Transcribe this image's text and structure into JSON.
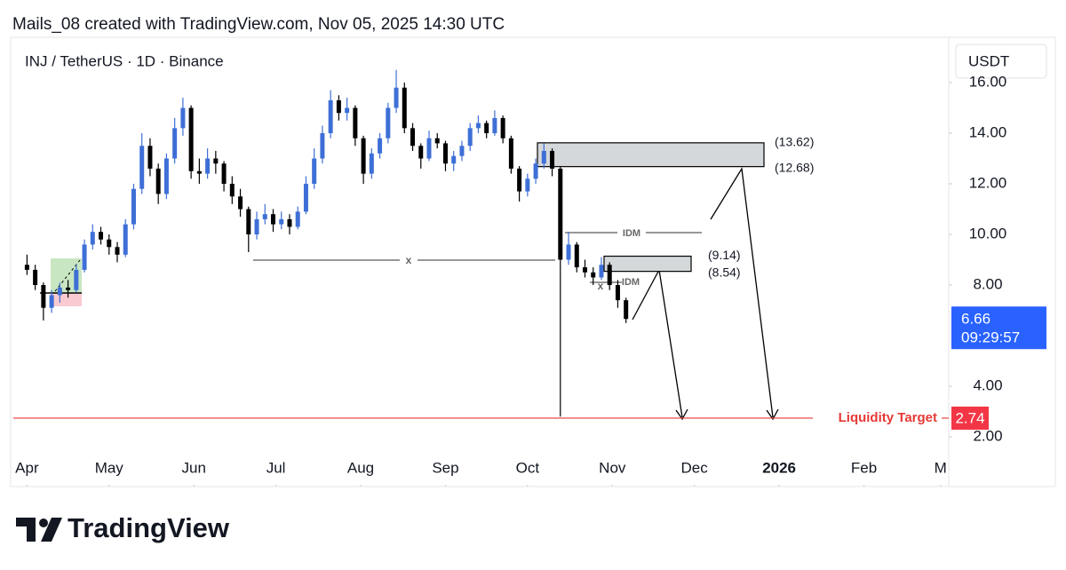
{
  "header": "Mails_08 created with TradingView.com, Nov 05, 2025 14:30 UTC",
  "brand": "TradingView",
  "chart_data": {
    "type": "candlestick",
    "symbol": "INJ / TetherUS · 1D · Binance",
    "currency": "USDT",
    "up_color": "#3d6fd6",
    "down_color": "#000000",
    "x": [
      91,
      94,
      97,
      100,
      103,
      106,
      109,
      112,
      115,
      118,
      121,
      124,
      127,
      130,
      133,
      136,
      139,
      142,
      145,
      148,
      151,
      154,
      157,
      160,
      163,
      166,
      169,
      172,
      175,
      178,
      181,
      184,
      187,
      190,
      193,
      196,
      199,
      202,
      205,
      208,
      211,
      214,
      217,
      220,
      223,
      226,
      229,
      232,
      235,
      238,
      241,
      244,
      247,
      250,
      253,
      256,
      259,
      262,
      265,
      268,
      271,
      274,
      277,
      280,
      283,
      286,
      289,
      292,
      295,
      298,
      301,
      304,
      307,
      310
    ],
    "candles": [
      [
        8.8,
        9.2,
        8.4,
        8.6
      ],
      [
        8.6,
        8.8,
        7.8,
        8.0
      ],
      [
        8.0,
        8.1,
        6.6,
        7.1
      ],
      [
        7.1,
        7.8,
        6.9,
        7.6
      ],
      [
        7.6,
        8.1,
        7.3,
        7.9
      ],
      [
        7.9,
        8.2,
        7.5,
        7.8
      ],
      [
        7.8,
        8.8,
        7.7,
        8.6
      ],
      [
        8.6,
        9.8,
        8.5,
        9.6
      ],
      [
        9.6,
        10.4,
        9.4,
        10.1
      ],
      [
        10.1,
        10.3,
        9.6,
        9.8
      ],
      [
        9.8,
        10.0,
        9.2,
        9.5
      ],
      [
        9.5,
        9.7,
        8.9,
        9.2
      ],
      [
        9.2,
        10.6,
        9.1,
        10.4
      ],
      [
        10.4,
        12.0,
        10.2,
        11.8
      ],
      [
        11.8,
        14.0,
        11.6,
        13.5
      ],
      [
        13.5,
        13.8,
        12.3,
        12.6
      ],
      [
        12.6,
        12.8,
        11.2,
        11.6
      ],
      [
        11.6,
        13.2,
        11.4,
        13.0
      ],
      [
        13.0,
        14.6,
        12.8,
        14.2
      ],
      [
        14.2,
        15.4,
        13.9,
        15.0
      ],
      [
        15.0,
        15.1,
        12.2,
        12.5
      ],
      [
        12.5,
        13.0,
        12.0,
        12.4
      ],
      [
        12.4,
        13.4,
        12.2,
        13.0
      ],
      [
        13.0,
        13.3,
        12.4,
        12.8
      ],
      [
        12.8,
        12.9,
        11.7,
        12.0
      ],
      [
        12.0,
        12.3,
        11.2,
        11.5
      ],
      [
        11.5,
        11.8,
        10.7,
        11.0
      ],
      [
        11.0,
        11.1,
        9.3,
        10.0
      ],
      [
        10.0,
        10.9,
        9.8,
        10.6
      ],
      [
        10.6,
        11.2,
        10.4,
        10.8
      ],
      [
        10.8,
        11.0,
        10.1,
        10.4
      ],
      [
        10.4,
        10.9,
        10.2,
        10.6
      ],
      [
        10.6,
        10.8,
        10.0,
        10.3
      ],
      [
        10.3,
        11.1,
        10.2,
        10.9
      ],
      [
        10.9,
        12.3,
        10.8,
        12.0
      ],
      [
        12.0,
        13.4,
        11.8,
        13.0
      ],
      [
        13.0,
        14.3,
        12.8,
        14.0
      ],
      [
        14.0,
        15.7,
        13.8,
        15.3
      ],
      [
        15.3,
        15.5,
        14.5,
        14.8
      ],
      [
        14.8,
        15.4,
        14.5,
        15.0
      ],
      [
        15.0,
        15.1,
        13.5,
        13.8
      ],
      [
        13.8,
        13.9,
        12.0,
        12.4
      ],
      [
        12.4,
        13.4,
        12.2,
        13.2
      ],
      [
        13.2,
        14.0,
        13.0,
        13.8
      ],
      [
        13.8,
        15.2,
        13.6,
        15.0
      ],
      [
        15.0,
        16.5,
        14.8,
        15.8
      ],
      [
        15.8,
        16.0,
        14.0,
        14.2
      ],
      [
        14.2,
        14.4,
        13.3,
        13.5
      ],
      [
        13.5,
        13.6,
        12.6,
        13.0
      ],
      [
        13.0,
        14.1,
        12.9,
        13.8
      ],
      [
        13.8,
        14.0,
        13.4,
        13.6
      ],
      [
        13.6,
        13.7,
        12.5,
        12.8
      ],
      [
        12.8,
        13.3,
        12.5,
        13.1
      ],
      [
        13.1,
        13.7,
        12.9,
        13.5
      ],
      [
        13.5,
        14.4,
        13.3,
        14.2
      ],
      [
        14.2,
        14.7,
        14.0,
        14.4
      ],
      [
        14.4,
        14.5,
        13.8,
        14.0
      ],
      [
        14.0,
        14.9,
        13.9,
        14.6
      ],
      [
        14.6,
        14.7,
        13.6,
        13.8
      ],
      [
        13.8,
        13.9,
        12.4,
        12.6
      ],
      [
        12.6,
        12.7,
        11.3,
        11.7
      ],
      [
        11.7,
        12.4,
        11.5,
        12.2
      ],
      [
        12.2,
        13.0,
        12.0,
        12.8
      ],
      [
        12.8,
        13.6,
        12.6,
        13.3
      ],
      [
        13.3,
        13.4,
        12.3,
        12.6
      ],
      [
        12.6,
        12.7,
        2.8,
        9.0
      ],
      [
        9.0,
        10.1,
        8.8,
        9.6
      ],
      [
        9.6,
        9.7,
        8.5,
        8.7
      ],
      [
        8.7,
        9.0,
        8.3,
        8.5
      ],
      [
        8.5,
        8.7,
        8.0,
        8.3
      ],
      [
        8.3,
        9.1,
        8.2,
        8.8
      ],
      [
        8.8,
        8.9,
        7.8,
        8.0
      ],
      [
        8.0,
        8.2,
        7.1,
        7.4
      ],
      [
        7.4,
        7.5,
        6.5,
        6.66
      ]
    ],
    "xlim": [
      86,
      428
    ],
    "xticks": [
      {
        "value": 91,
        "label": "Apr"
      },
      {
        "value": 121,
        "label": "May"
      },
      {
        "value": 152,
        "label": "Jun"
      },
      {
        "value": 182,
        "label": "Jul"
      },
      {
        "value": 213,
        "label": "Aug"
      },
      {
        "value": 244,
        "label": "Sep"
      },
      {
        "value": 274,
        "label": "Oct"
      },
      {
        "value": 305,
        "label": "Nov"
      },
      {
        "value": 335,
        "label": "Dec"
      },
      {
        "value": 366,
        "label": "2026"
      },
      {
        "value": 397,
        "label": "Feb"
      },
      {
        "value": 425,
        "label": "M"
      }
    ],
    "ylim": [
      1.37,
      17.79
    ],
    "yticks": [
      {
        "value": 2,
        "label": "2.00"
      },
      {
        "value": 4,
        "label": "4.00"
      },
      {
        "value": 8,
        "label": "8.00"
      },
      {
        "value": 10,
        "label": "10.00"
      },
      {
        "value": 12,
        "label": "12.00"
      },
      {
        "value": 14,
        "label": "14.00"
      },
      {
        "value": 16,
        "label": "16.00"
      }
    ],
    "zones": [
      {
        "top": 13.62,
        "bottom": 12.68,
        "top_label": "(13.62)",
        "bottom_label": "(12.68)"
      },
      {
        "top": 9.14,
        "bottom": 8.54,
        "top_label": "(9.14)",
        "bottom_label": "(8.54)"
      }
    ],
    "annotations": [
      "x",
      "IDM",
      "x",
      "IDM"
    ],
    "liquidity_target": {
      "label": "Liquidity Target",
      "value": 2.74
    },
    "last_price": {
      "value": 6.66,
      "countdown": "09:29:57"
    }
  }
}
